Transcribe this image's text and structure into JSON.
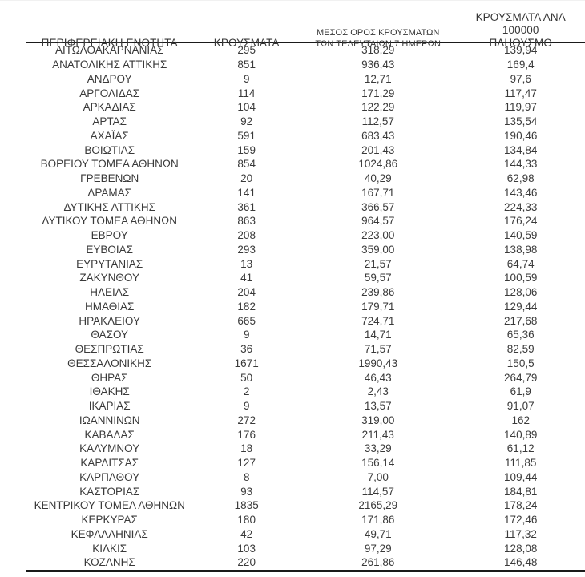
{
  "colors": {
    "text": "#3a3a3a",
    "rule": "#1a1a1a"
  },
  "table": {
    "headers": {
      "region": "ΠΕΡΙΦΕΡΕΙΑΚΗ ΕΝΟΤΗΤΑ",
      "cases": "ΚΡΟΥΣΜΑΤΑ",
      "avg7_line1": "ΜΕΣΟΣ ΟΡΟΣ ΚΡΟΥΣΜΑΤΩΝ",
      "avg7_line2": "ΤΩΝ ΤΕΛΕΥΤΑΙΩΝ 7 ΗΜΕΡΩΝ",
      "per100k_line1": "ΚΡΟΥΣΜΑΤΑ ΑΝΑ 100000",
      "per100k_line2": "ΠΛΗΘΥΣΜΟ"
    },
    "rows": [
      [
        "ΑΙΤΩΛΟΑΚΑΡΝΑΝΙΑΣ",
        "295",
        "318,29",
        "139,94"
      ],
      [
        "ΑΝΑΤΟΛΙΚΗΣ ΑΤΤΙΚΗΣ",
        "851",
        "936,43",
        "169,4"
      ],
      [
        "ΑΝΔΡΟΥ",
        "9",
        "12,71",
        "97,6"
      ],
      [
        "ΑΡΓΟΛΙΔΑΣ",
        "114",
        "171,29",
        "117,47"
      ],
      [
        "ΑΡΚΑΔΙΑΣ",
        "104",
        "122,29",
        "119,97"
      ],
      [
        "ΑΡΤΑΣ",
        "92",
        "112,57",
        "135,54"
      ],
      [
        "ΑΧΑΪΑΣ",
        "591",
        "683,43",
        "190,46"
      ],
      [
        "ΒΟΙΩΤΙΑΣ",
        "159",
        "201,43",
        "134,84"
      ],
      [
        "ΒΟΡΕΙΟΥ ΤΟΜΕΑ ΑΘΗΝΩΝ",
        "854",
        "1024,86",
        "144,33"
      ],
      [
        "ΓΡΕΒΕΝΩΝ",
        "20",
        "40,29",
        "62,98"
      ],
      [
        "ΔΡΑΜΑΣ",
        "141",
        "167,71",
        "143,46"
      ],
      [
        "ΔΥΤΙΚΗΣ ΑΤΤΙΚΗΣ",
        "361",
        "366,57",
        "224,33"
      ],
      [
        "ΔΥΤΙΚΟΥ ΤΟΜΕΑ ΑΘΗΝΩΝ",
        "863",
        "964,57",
        "176,24"
      ],
      [
        "ΕΒΡΟΥ",
        "208",
        "223,00",
        "140,59"
      ],
      [
        "ΕΥΒΟΙΑΣ",
        "293",
        "359,00",
        "138,98"
      ],
      [
        "ΕΥΡΥΤΑΝΙΑΣ",
        "13",
        "21,57",
        "64,74"
      ],
      [
        "ΖΑΚΥΝΘΟΥ",
        "41",
        "59,57",
        "100,59"
      ],
      [
        "ΗΛΕΙΑΣ",
        "204",
        "239,86",
        "128,06"
      ],
      [
        "ΗΜΑΘΙΑΣ",
        "182",
        "179,71",
        "129,44"
      ],
      [
        "ΗΡΑΚΛΕΙΟΥ",
        "665",
        "724,71",
        "217,68"
      ],
      [
        "ΘΑΣΟΥ",
        "9",
        "14,71",
        "65,36"
      ],
      [
        "ΘΕΣΠΡΩΤΙΑΣ",
        "36",
        "71,57",
        "82,59"
      ],
      [
        "ΘΕΣΣΑΛΟΝΙΚΗΣ",
        "1671",
        "1990,43",
        "150,5"
      ],
      [
        "ΘΗΡΑΣ",
        "50",
        "46,43",
        "264,79"
      ],
      [
        "ΙΘΑΚΗΣ",
        "2",
        "2,43",
        "61,9"
      ],
      [
        "ΙΚΑΡΙΑΣ",
        "9",
        "13,57",
        "91,07"
      ],
      [
        "ΙΩΑΝΝΙΝΩΝ",
        "272",
        "319,00",
        "162"
      ],
      [
        "ΚΑΒΑΛΑΣ",
        "176",
        "211,43",
        "140,89"
      ],
      [
        "ΚΑΛΥΜΝΟΥ",
        "18",
        "33,29",
        "61,12"
      ],
      [
        "ΚΑΡΔΙΤΣΑΣ",
        "127",
        "156,14",
        "111,85"
      ],
      [
        "ΚΑΡΠΑΘΟΥ",
        "8",
        "7,00",
        "109,44"
      ],
      [
        "ΚΑΣΤΟΡΙΑΣ",
        "93",
        "114,57",
        "184,81"
      ],
      [
        "ΚΕΝΤΡΙΚΟΥ ΤΟΜΕΑ ΑΘΗΝΩΝ",
        "1835",
        "2165,29",
        "178,24"
      ],
      [
        "ΚΕΡΚΥΡΑΣ",
        "180",
        "171,86",
        "172,46"
      ],
      [
        "ΚΕΦΑΛΛΗΝΙΑΣ",
        "42",
        "49,71",
        "117,32"
      ],
      [
        "ΚΙΛΚΙΣ",
        "103",
        "97,29",
        "128,08"
      ],
      [
        "ΚΟΖΑΝΗΣ",
        "220",
        "261,86",
        "146,48"
      ]
    ]
  }
}
